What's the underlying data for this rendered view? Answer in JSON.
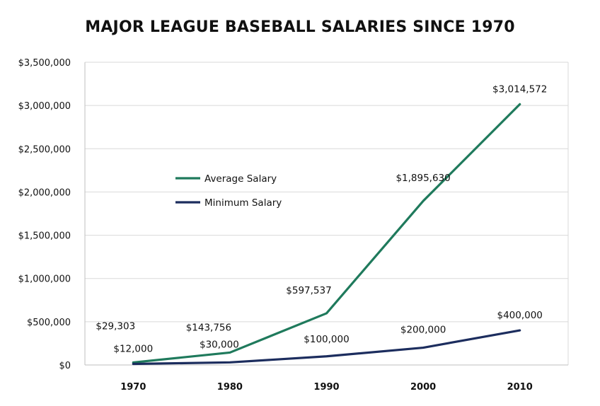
{
  "chart_data": {
    "type": "line",
    "title": "MAJOR LEAGUE BASEBALL SALARIES SINCE 1970",
    "xlabel": "",
    "ylabel": "",
    "x": [
      "1970",
      "1980",
      "1990",
      "2000",
      "2010"
    ],
    "ylim": [
      0,
      3500000
    ],
    "y_ticks": [
      {
        "value": 0,
        "label": "$0"
      },
      {
        "value": 500000,
        "label": "$500,000"
      },
      {
        "value": 1000000,
        "label": "$1,000,000"
      },
      {
        "value": 1500000,
        "label": "$1,500,000"
      },
      {
        "value": 2000000,
        "label": "$2,000,000"
      },
      {
        "value": 2500000,
        "label": "$2,500,000"
      },
      {
        "value": 3000000,
        "label": "$3,000,000"
      },
      {
        "value": 3500000,
        "label": "$3,500,000"
      }
    ],
    "grid": true,
    "legend_position": "upper-left, inside plot",
    "series": [
      {
        "name": "Average Salary",
        "color": "#1f7a5c",
        "values": [
          29303,
          143756,
          597537,
          1895630,
          3014572
        ],
        "labels": [
          "$29,303",
          "$143,756",
          "$597,537",
          "$1,895,630",
          "$3,014,572"
        ]
      },
      {
        "name": "Minimum Salary",
        "color": "#1c2d5e",
        "values": [
          12000,
          30000,
          100000,
          200000,
          400000
        ],
        "labels": [
          "$12,000",
          "$30,000",
          "$100,000",
          "$200,000",
          "$400,000"
        ]
      }
    ]
  }
}
